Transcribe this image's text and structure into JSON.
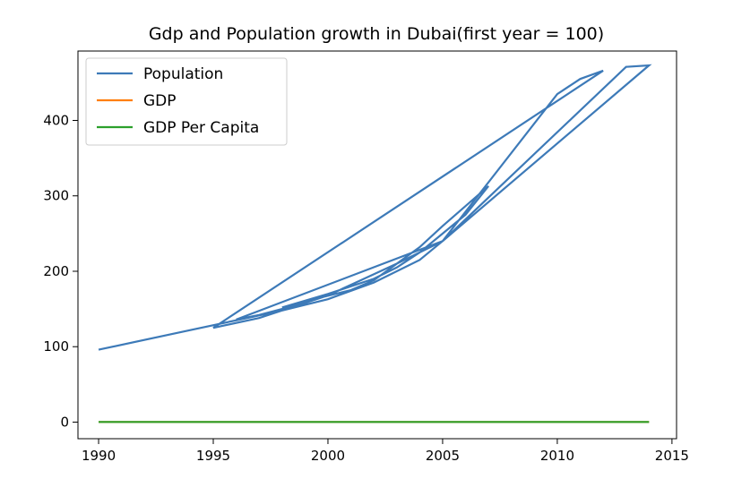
{
  "chart_data": {
    "type": "line",
    "title": "Gdp and Population growth in Dubai(first year = 100)",
    "xlabel": "",
    "ylabel": "",
    "xlim": [
      1989.1,
      2015.2
    ],
    "ylim": [
      -22,
      492
    ],
    "x_ticks": [
      "1990",
      "1995",
      "2000",
      "2005",
      "2010",
      "2015"
    ],
    "y_ticks": [
      "0",
      "100",
      "200",
      "300",
      "400"
    ],
    "grid": false,
    "legend_position": "top-left",
    "series": [
      {
        "name": "Population",
        "color": "#3d7ab8",
        "x": [
          1990,
          1994,
          1996,
          1998,
          2000,
          2002,
          2004,
          2005,
          2010,
          2011,
          2012,
          1995,
          1997,
          2000,
          2001,
          2003,
          2004,
          2005,
          2006,
          2007,
          2005,
          2004,
          2003,
          2002,
          2001,
          1999,
          1998,
          1997,
          1996,
          2005,
          2013,
          2014,
          2005,
          2004,
          2003,
          2002,
          2000,
          1998
        ],
        "y": [
          96,
          122,
          135,
          148,
          163,
          185,
          215,
          240,
          435,
          455,
          466,
          125,
          138,
          168,
          182,
          210,
          225,
          250,
          275,
          313,
          260,
          232,
          210,
          188,
          175,
          160,
          150,
          142,
          136,
          240,
          471,
          473,
          240,
          225,
          205,
          190,
          170,
          152
        ]
      },
      {
        "name": "GDP",
        "color": "#ff7f0e",
        "x": [
          1990,
          2014
        ],
        "y": [
          0.2,
          0.2
        ]
      },
      {
        "name": "GDP Per Capita",
        "color": "#2ca02c",
        "x": [
          1990,
          2014
        ],
        "y": [
          0.2,
          0.2
        ]
      }
    ]
  }
}
